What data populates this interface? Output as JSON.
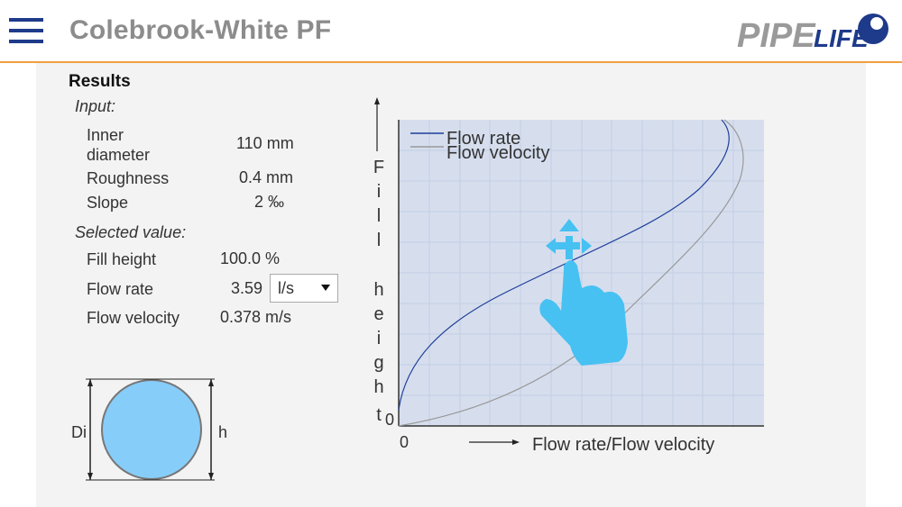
{
  "app": {
    "title": "Colebrook-White PF",
    "logo_text_1": "PIPE",
    "logo_text_2": "LIFE"
  },
  "results": {
    "heading": "Results",
    "input_label": "Input:",
    "inner_diameter_label": "Inner diameter",
    "inner_diameter_value": "110 mm",
    "roughness_label": "Roughness",
    "roughness_value": "0.4 mm",
    "slope_label": "Slope",
    "slope_value": "2 ‰",
    "selected_label": "Selected value:",
    "fill_height_label": "Fill height",
    "fill_height_value": "100.0 %",
    "flow_rate_label": "Flow rate",
    "flow_rate_value": "3.59",
    "flow_rate_unit": "l/s",
    "flow_velocity_label": "Flow velocity",
    "flow_velocity_value": "0.378 m/s"
  },
  "diagram": {
    "di_label": "Di",
    "h_label": "h"
  },
  "chart": {
    "y_axis_label": "Fill height",
    "x_axis_label": "Flow rate/Flow velocity",
    "x_origin_label": "0",
    "y_origin_label": "0",
    "legend_flow_rate": "Flow rate",
    "legend_flow_velocity": "Flow velocity"
  },
  "colors": {
    "accent": "#1e3a8a",
    "header_border": "#f0a040",
    "chart_bg": "#d6deee",
    "flow_rate_line": "#1f3f99",
    "flow_velocity_line": "#999999",
    "pipe_fill": "#87cdfa",
    "gesture_hand": "#47c1f2"
  },
  "icons": {
    "menu": "hamburger-menu-icon",
    "dropdown": "chevron-down-icon",
    "gesture": "hand-touch-move-icon"
  }
}
